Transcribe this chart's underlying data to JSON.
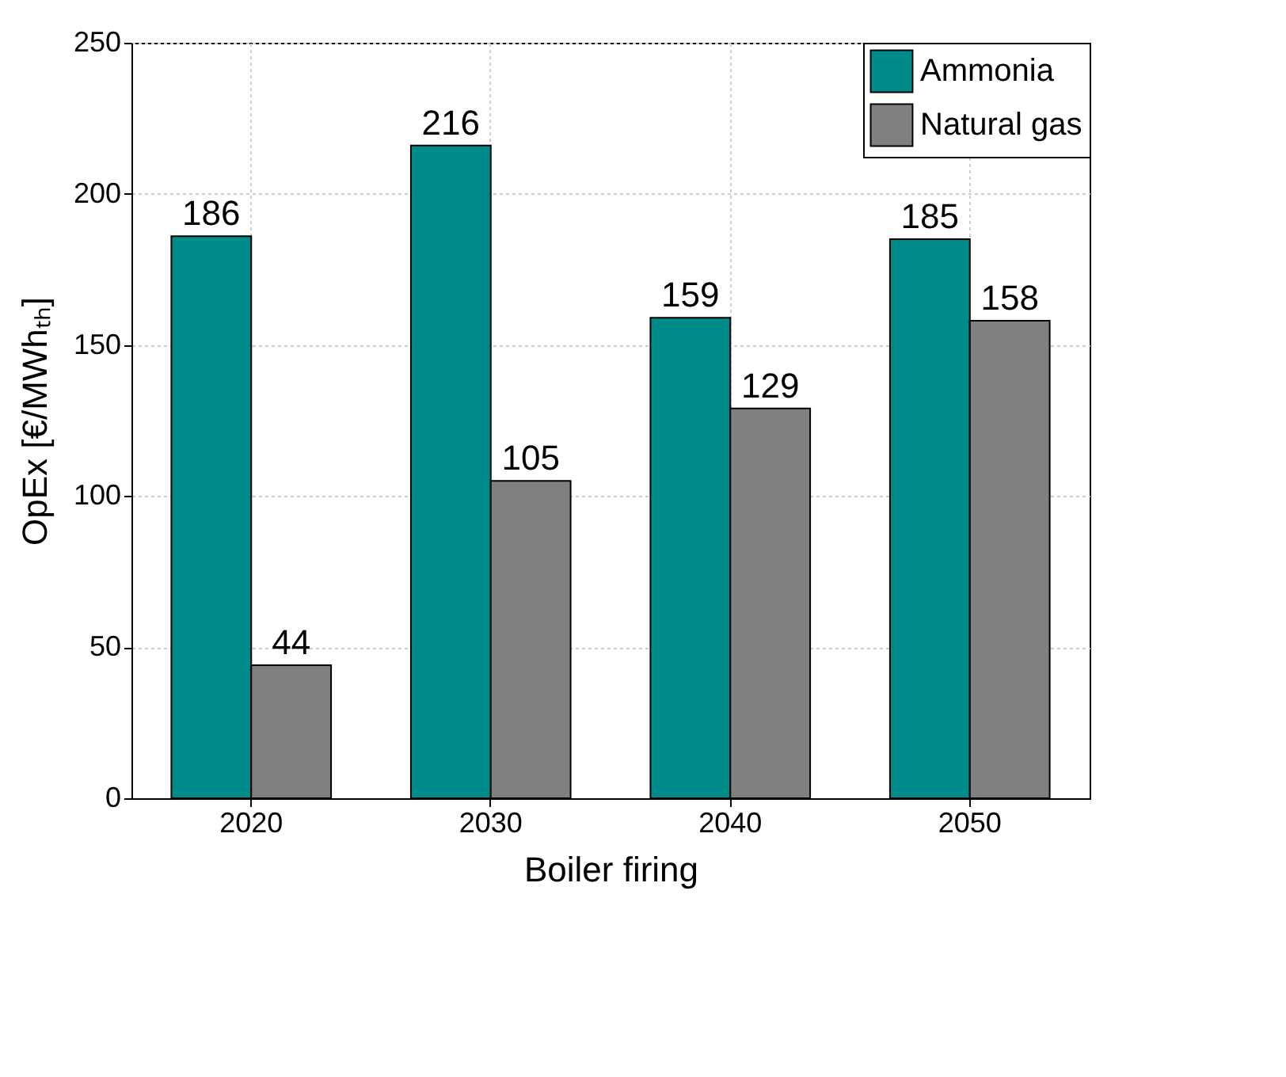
{
  "chart_data": {
    "type": "bar",
    "xlabel": "Boiler firing",
    "ylabel": "OpEx [€/MWhₜₕ]",
    "categories": [
      "2020",
      "2030",
      "2040",
      "2050"
    ],
    "series": [
      {
        "name": "Ammonia",
        "color": "#008b8b",
        "values": [
          186,
          216,
          159,
          185
        ]
      },
      {
        "name": "Natural gas",
        "color": "#808080",
        "values": [
          44,
          105,
          129,
          158
        ]
      }
    ],
    "ylim": [
      0,
      250
    ],
    "yticks": [
      0,
      50,
      100,
      150,
      200,
      250
    ],
    "grid": true,
    "legend": "top right",
    "data_labels": true
  }
}
